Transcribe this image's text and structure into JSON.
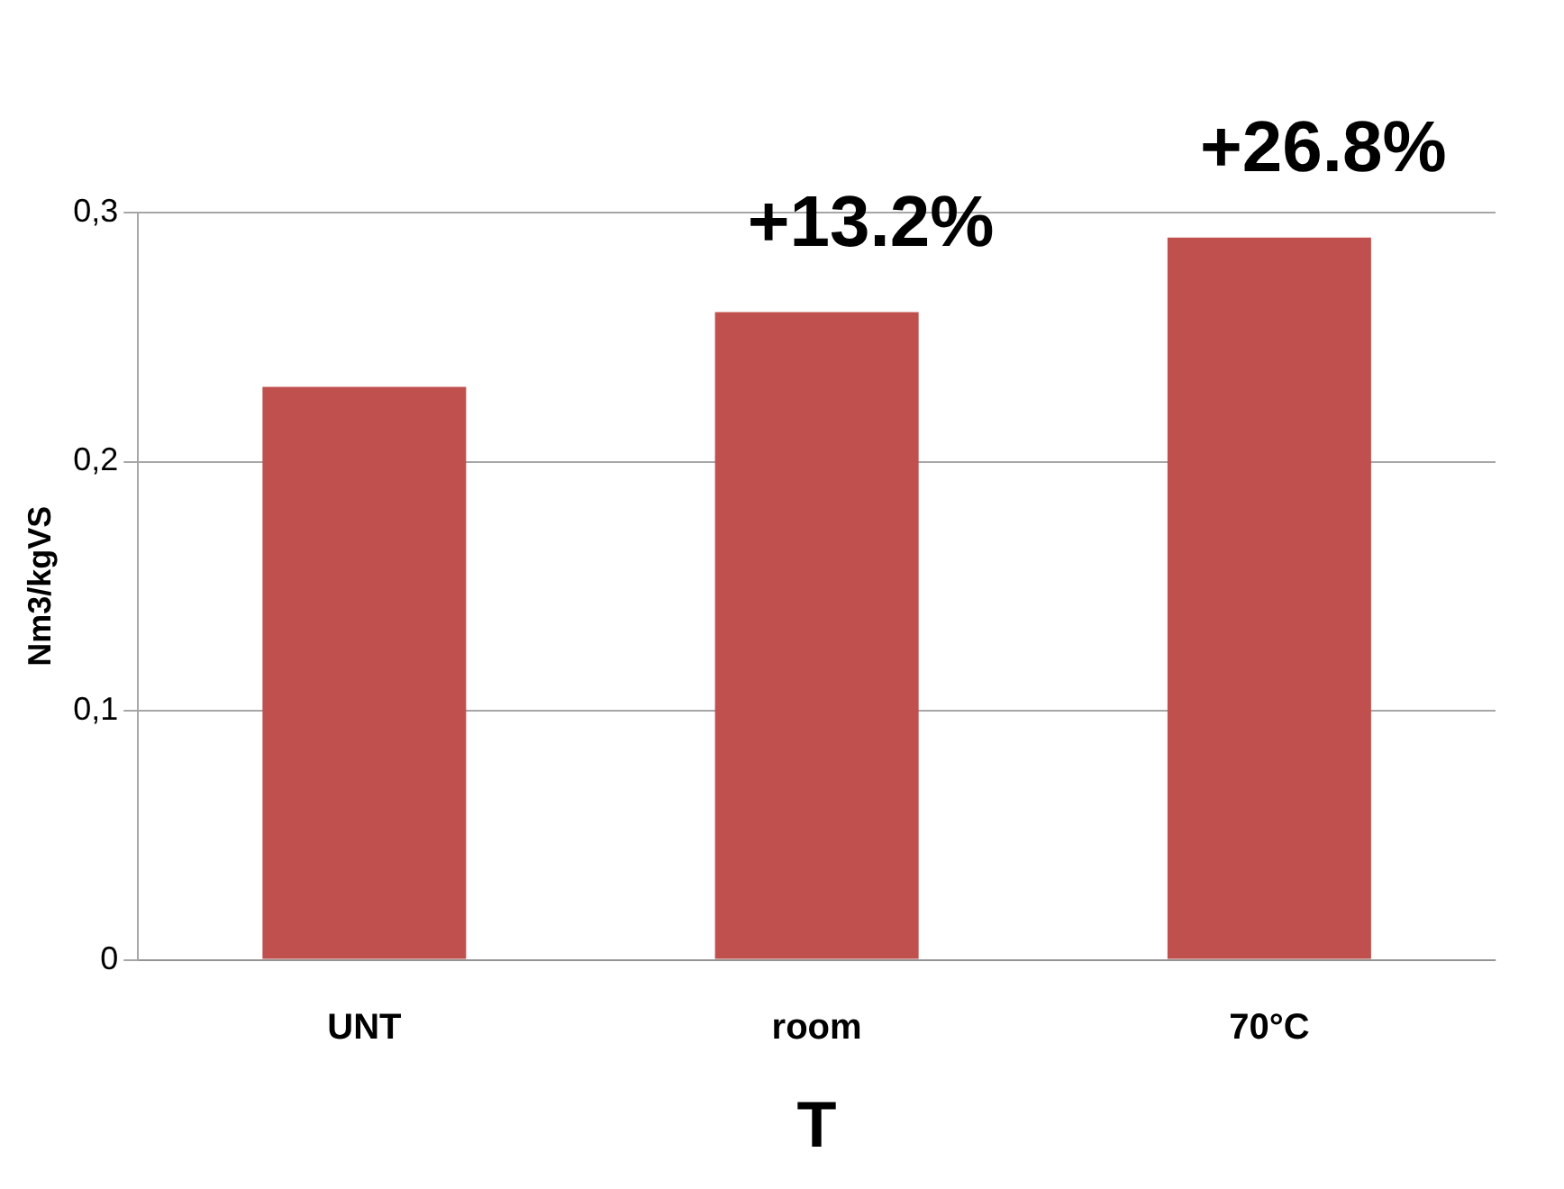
{
  "chart_data": {
    "type": "bar",
    "categories": [
      "UNT",
      "room",
      "70°C"
    ],
    "values": [
      0.23,
      0.26,
      0.29
    ],
    "color": "#c0504d",
    "xlabel": "T",
    "ylabel": "Nm3/kgVS",
    "ylim": [
      0,
      0.3
    ],
    "yticks": [
      {
        "value": 0,
        "label": "0"
      },
      {
        "value": 0.1,
        "label": "0,1"
      },
      {
        "value": 0.2,
        "label": "0,2"
      },
      {
        "value": 0.3,
        "label": "0,3"
      }
    ],
    "grid": "y",
    "legend": false,
    "annotations": [
      {
        "text": "+13.2%",
        "x": "room",
        "y": 0.26
      },
      {
        "text": "+26.8%",
        "x": "70°C",
        "y": 0.29
      }
    ]
  }
}
